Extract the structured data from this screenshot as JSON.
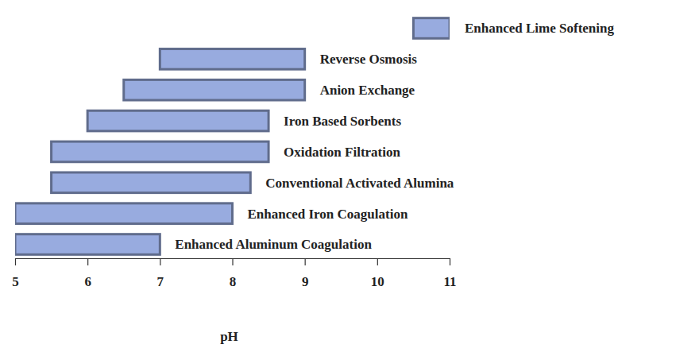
{
  "chart_data": {
    "type": "bar",
    "orientation": "horizontal",
    "categories": [
      "Enhanced Lime Softening",
      "Reverse Osmosis",
      "Anion Exchange",
      "Iron Based Sorbents",
      "Oxidation Filtration",
      "Conventional Activated Alumina",
      "Enhanced Iron Coagulation",
      "Enhanced Aluminum Coagulation"
    ],
    "values": [
      [
        10.5,
        11
      ],
      [
        7,
        9
      ],
      [
        6.5,
        9
      ],
      [
        6,
        8.5
      ],
      [
        5.5,
        8.5
      ],
      [
        5.5,
        8.25
      ],
      [
        5,
        8
      ],
      [
        5,
        7
      ]
    ],
    "color": "#98abdf",
    "x_label": "pH",
    "xlim": [
      5,
      11
    ],
    "xticks": [
      5,
      6,
      7,
      8,
      9,
      10,
      11
    ],
    "tick_labels": "x",
    "grid": false
  }
}
